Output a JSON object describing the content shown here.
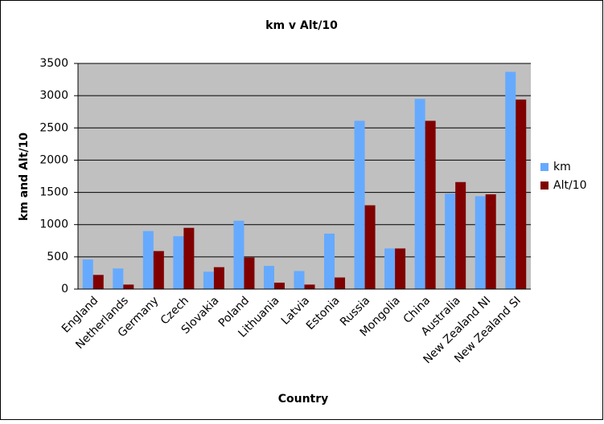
{
  "chart_data": {
    "type": "bar",
    "title": "km v Alt/10",
    "x_label": "Country",
    "y_label": "km and Alt/10",
    "categories": [
      "England",
      "Netherlands",
      "Germany",
      "Czech",
      "Slovakia",
      "Poland",
      "Lithuania",
      "Latvia",
      "Estonia",
      "Russia",
      "Mongolia",
      "China",
      "Australia",
      "New Zealand NI",
      "New Zealand SI"
    ],
    "series": [
      {
        "name": "km",
        "color": "#66aaff",
        "values": [
          460,
          320,
          900,
          820,
          270,
          1060,
          360,
          280,
          860,
          2610,
          630,
          2950,
          1480,
          1440,
          3370
        ]
      },
      {
        "name": "Alt/10",
        "color": "#800000",
        "values": [
          220,
          70,
          590,
          950,
          340,
          490,
          100,
          70,
          180,
          1300,
          630,
          2610,
          1660,
          1470,
          2940
        ]
      }
    ],
    "ylim": [
      0,
      3500
    ],
    "yticks": [
      0,
      500,
      1000,
      1500,
      2000,
      2500,
      3000,
      3500
    ],
    "grid": true,
    "legend": "right"
  }
}
